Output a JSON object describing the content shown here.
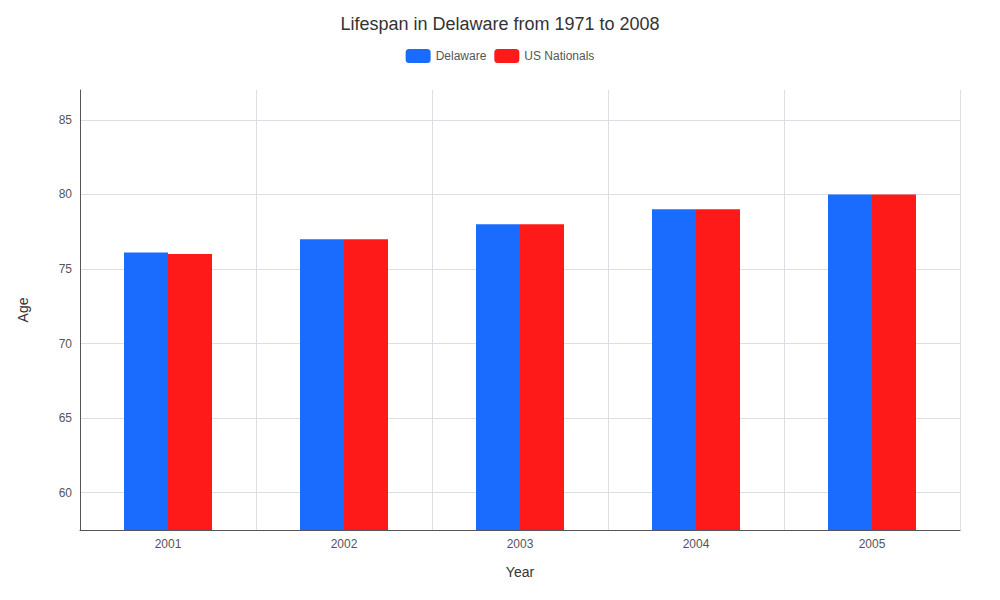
{
  "chart_data": {
    "type": "bar",
    "title": "Lifespan in Delaware from 1971 to 2008",
    "xlabel": "Year",
    "ylabel": "Age",
    "categories": [
      "2001",
      "2002",
      "2003",
      "2004",
      "2005"
    ],
    "series": [
      {
        "name": "Delaware",
        "color": "#1a6bff",
        "values": [
          76.1,
          77.0,
          78.0,
          79.0,
          80.0
        ]
      },
      {
        "name": "US Nationals",
        "color": "#ff1a1a",
        "values": [
          76.0,
          77.0,
          78.0,
          79.0,
          80.0
        ]
      }
    ],
    "ylim": [
      57.5,
      87
    ],
    "yticks": [
      60,
      65,
      70,
      75,
      80,
      85
    ],
    "grid": true,
    "legend": "top"
  }
}
